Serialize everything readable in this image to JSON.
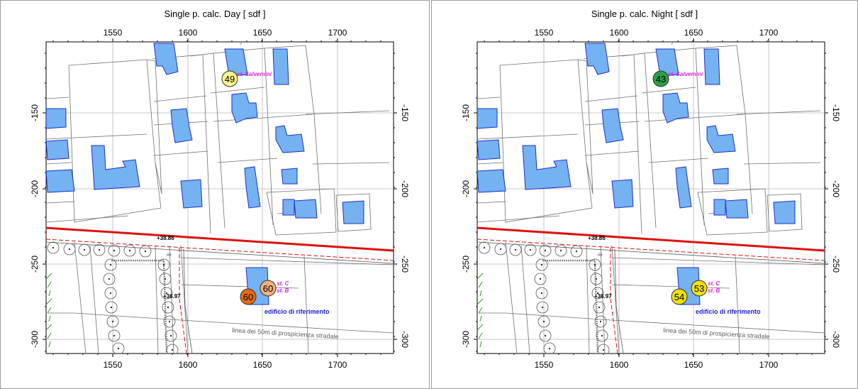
{
  "maps": [
    {
      "title": "Single p. calc. Day  [ sdf ]",
      "receivers": [
        {
          "id": "st_salvemini",
          "label": "st. Salvemini",
          "value": "49",
          "color": "#fbf48c"
        },
        {
          "id": "st_b",
          "label": "st. B",
          "value": "60",
          "color": "#e86a14"
        },
        {
          "id": "st_c",
          "label": "st. C",
          "value": "60",
          "color": "#f3b07a"
        }
      ]
    },
    {
      "title": "Single p. calc. Night  [ sdf ]",
      "receivers": [
        {
          "id": "st_salvemini",
          "label": "st. Salvemini",
          "value": "43",
          "color": "#2ca048"
        },
        {
          "id": "st_b",
          "label": "st. B",
          "value": "54",
          "color": "#f0e010"
        },
        {
          "id": "st_c",
          "label": "st. C",
          "value": "53",
          "color": "#f0e010"
        }
      ]
    }
  ],
  "axes": {
    "x_ticks": [
      "1550",
      "1600",
      "1650",
      "1700"
    ],
    "y_ticks": [
      "-150",
      "-200",
      "-250",
      "-300"
    ]
  },
  "annotations": {
    "building_label": "edificio di riferimento",
    "buffer_label": "linea dei 50m di prospicienza stradale",
    "elev_top": "+38.86",
    "elev_mid": "+36.97",
    "small_tag": "##"
  },
  "colors": {
    "building_fill": "#74b2f2",
    "building_stroke": "#2030c0",
    "road": "#dd1111",
    "label_magenta": "#e020e0",
    "label_blue": "#2020d0"
  }
}
